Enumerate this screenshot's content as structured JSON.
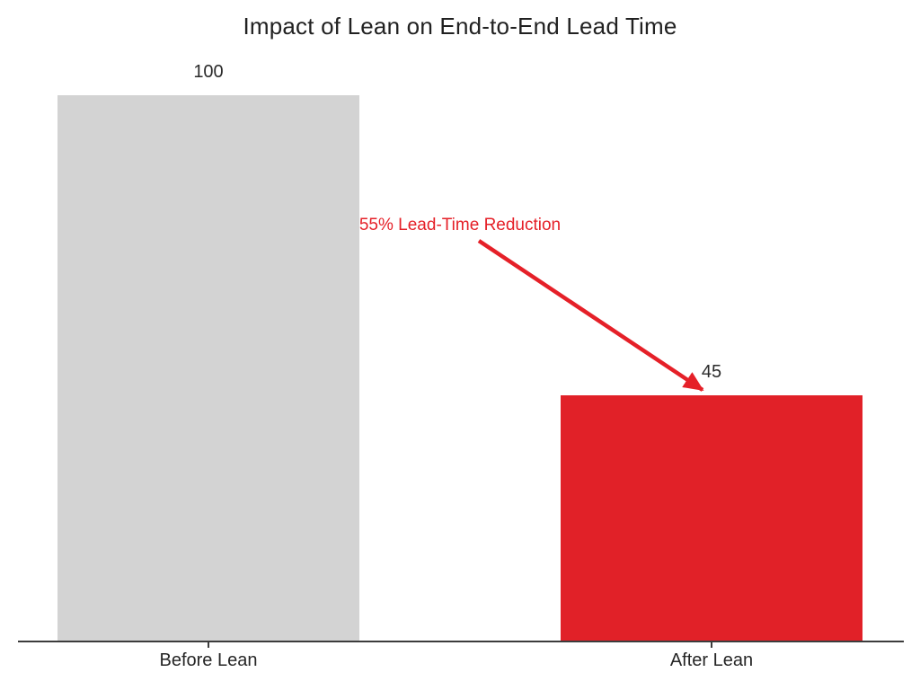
{
  "chart_data": {
    "type": "bar",
    "title": "Impact of Lean on End-to-End Lead Time",
    "categories": [
      "Before Lean",
      "After Lean"
    ],
    "values": [
      100,
      45
    ],
    "value_labels": [
      "100",
      "45"
    ],
    "bar_colors": [
      "#d3d3d3",
      "#e12128"
    ],
    "xlabel": "",
    "ylabel": "",
    "ylim": [
      0,
      100
    ],
    "grid": false,
    "legend": "none",
    "annotation": {
      "text": "55% Lead-Time Reduction",
      "color": "#e52028",
      "arrow": true,
      "arrow_points_to": "top of After Lean bar"
    }
  },
  "colors": {
    "background": "#ffffff",
    "bar_gray": "#d3d3d3",
    "bar_red": "#e12128",
    "accent_red": "#e52028",
    "axis": "#3c3c3c",
    "text": "#212121"
  }
}
